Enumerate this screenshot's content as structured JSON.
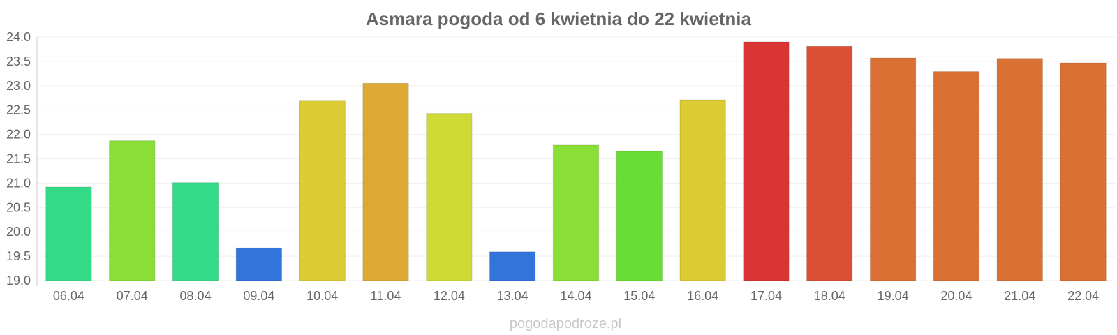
{
  "chart_data": {
    "type": "bar",
    "title": "Asmara pogoda od 6 kwietnia do 22 kwietnia",
    "xlabel": "",
    "ylabel": "",
    "ylim": [
      19.0,
      24.0
    ],
    "yticks": [
      "19.0",
      "19.5",
      "20.0",
      "20.5",
      "21.0",
      "21.5",
      "22.0",
      "22.5",
      "23.0",
      "23.5",
      "24.0"
    ],
    "grid": true,
    "categories": [
      "06.04",
      "07.04",
      "08.04",
      "09.04",
      "10.04",
      "11.04",
      "12.04",
      "13.04",
      "14.04",
      "15.04",
      "16.04",
      "17.04",
      "18.04",
      "19.04",
      "20.04",
      "21.04",
      "22.04"
    ],
    "values": [
      20.92,
      21.87,
      21.01,
      19.67,
      22.7,
      23.05,
      22.43,
      19.59,
      21.78,
      21.65,
      22.71,
      23.9,
      23.81,
      23.57,
      23.29,
      23.56,
      23.47
    ],
    "colors": [
      "#34db87",
      "#89df35",
      "#34db87",
      "#3374db",
      "#dbcb34",
      "#dba934",
      "#cfdb34",
      "#3374db",
      "#89df35",
      "#68dd35",
      "#dbcb34",
      "#db3434",
      "#db5034",
      "#db7034",
      "#db7034",
      "#db7034",
      "#db7034"
    ]
  },
  "watermark": "pogodapodroze.pl"
}
